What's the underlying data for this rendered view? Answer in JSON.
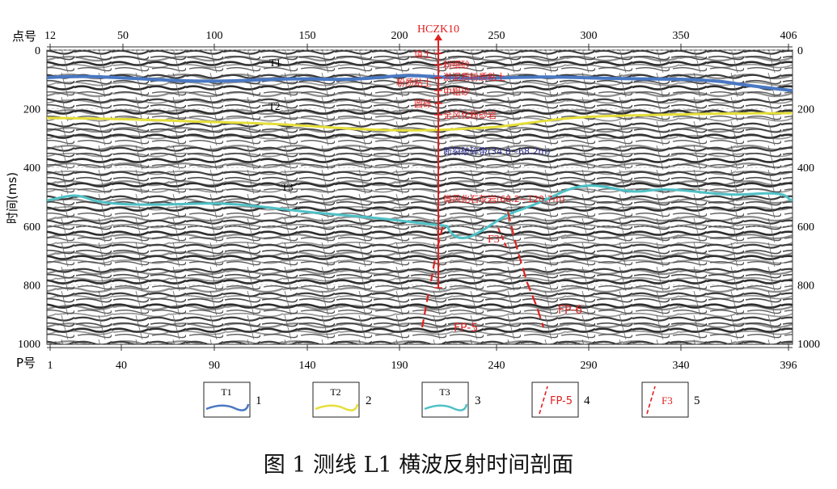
{
  "caption": "图 1 测线 L1 横波反射时间剖面",
  "axes": {
    "top_label": "点号",
    "top_ticks": [
      "12",
      "50",
      "100",
      "150",
      "200",
      "250",
      "300",
      "350",
      "406"
    ],
    "bottom_label": "P号",
    "bottom_ticks": [
      "1",
      "40",
      "90",
      "140",
      "190",
      "240",
      "290",
      "340",
      "396"
    ],
    "left_label": "时间(ms)",
    "time_ticks": [
      "0",
      "200",
      "400",
      "600",
      "800",
      "1000"
    ]
  },
  "horizons": [
    {
      "label": "T1",
      "color": "#4a78c2"
    },
    {
      "label": "T2",
      "color": "#e6df3a"
    },
    {
      "label": "T3",
      "color": "#4fc1c6"
    }
  ],
  "borehole": {
    "name": "HCZK10",
    "color": "#e02020",
    "layers_left": [
      "填土",
      "粉质粘土",
      "圆砾"
    ],
    "layers_right": [
      "粉细砂",
      "淤泥质粉质粘土",
      "中粗砂",
      "全风化粉砂岩"
    ],
    "annotation_fracture": "断裂破碎带(34.8~68.2m)",
    "annotation_rock": "微风化石灰岩(68.2~120.7m)"
  },
  "faults": [
    {
      "label": "FP-5"
    },
    {
      "label": "FP-6"
    },
    {
      "label": "F3"
    }
  ],
  "legend": [
    {
      "symbol": "T1",
      "num": "1",
      "kind": "line",
      "color": "#4a78c2"
    },
    {
      "symbol": "T2",
      "num": "2",
      "kind": "line",
      "color": "#e6df3a"
    },
    {
      "symbol": "T3",
      "num": "3",
      "kind": "line",
      "color": "#4fc1c6"
    },
    {
      "symbol": "FP-5",
      "num": "4",
      "kind": "fault",
      "color": "#e02020"
    },
    {
      "symbol": "F3",
      "num": "5",
      "kind": "fault",
      "color": "#e02020"
    }
  ]
}
